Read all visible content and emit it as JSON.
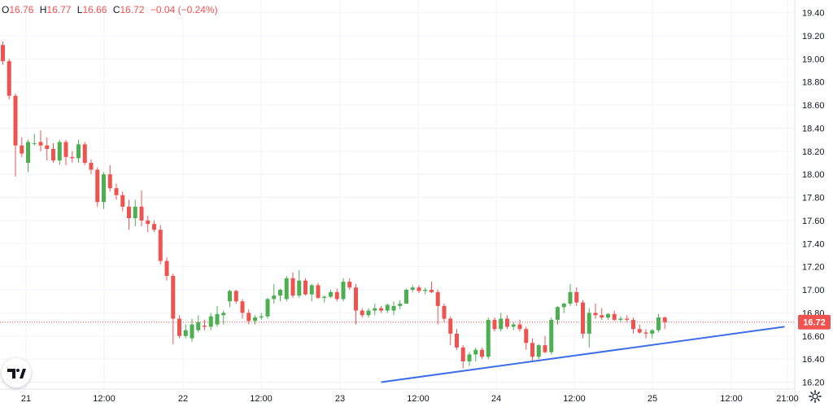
{
  "legend": {
    "o_label": "O",
    "o_value": "16.76",
    "h_label": "H",
    "h_value": "16.77",
    "l_label": "L",
    "l_value": "16.66",
    "c_label": "C",
    "c_value": "16.72",
    "change": "−0.04 (−0.24%)"
  },
  "colors": {
    "up": "#4caf50",
    "down": "#ef5350",
    "trendline": "#3d6ee8",
    "grid": "#f0f3fa",
    "axis_text": "#131722",
    "price_tag": "#ef5350"
  },
  "icons": {
    "logo": "tradingview-logo-icon",
    "settings": "gear-icon"
  },
  "chart_data": {
    "type": "candlestick",
    "y_ticks": [
      "16.20",
      "16.40",
      "16.60",
      "16.80",
      "17.00",
      "17.20",
      "17.40",
      "17.60",
      "17.80",
      "18.00",
      "18.20",
      "18.40",
      "18.60",
      "18.80",
      "19.00",
      "19.20",
      "19.40"
    ],
    "ylim": [
      16.14,
      19.51
    ],
    "x_ticks": [
      "21",
      "12:00",
      "22",
      "12:00",
      "23",
      "12:00",
      "24",
      "12:00",
      "25",
      "12:00",
      "21:00"
    ],
    "last_price": "16.72",
    "grid": true,
    "candles": [
      [
        19.12,
        19.15,
        18.95,
        18.98
      ],
      [
        18.98,
        19.0,
        18.65,
        18.68
      ],
      [
        18.68,
        18.7,
        17.98,
        18.25
      ],
      [
        18.25,
        18.32,
        18.15,
        18.18
      ],
      [
        18.1,
        18.3,
        18.02,
        18.28
      ],
      [
        18.27,
        18.35,
        18.25,
        18.27
      ],
      [
        18.28,
        18.38,
        18.2,
        18.25
      ],
      [
        18.25,
        18.32,
        18.12,
        18.22
      ],
      [
        18.22,
        18.27,
        18.1,
        18.12
      ],
      [
        18.12,
        18.3,
        18.08,
        18.28
      ],
      [
        18.28,
        18.3,
        18.08,
        18.15
      ],
      [
        18.15,
        18.2,
        18.1,
        18.14
      ],
      [
        18.14,
        18.3,
        18.1,
        18.26
      ],
      [
        18.26,
        18.28,
        18.08,
        18.1
      ],
      [
        18.1,
        18.13,
        18.0,
        18.04
      ],
      [
        18.04,
        18.06,
        17.72,
        17.76
      ],
      [
        17.76,
        18.02,
        17.7,
        18.0
      ],
      [
        18.0,
        18.08,
        17.85,
        17.88
      ],
      [
        17.88,
        17.92,
        17.78,
        17.82
      ],
      [
        17.82,
        17.85,
        17.68,
        17.72
      ],
      [
        17.72,
        17.78,
        17.52,
        17.62
      ],
      [
        17.62,
        17.78,
        17.55,
        17.72
      ],
      [
        17.72,
        17.86,
        17.55,
        17.6
      ],
      [
        17.6,
        17.64,
        17.5,
        17.57
      ],
      [
        17.57,
        17.6,
        17.5,
        17.52
      ],
      [
        17.52,
        17.56,
        17.22,
        17.25
      ],
      [
        17.25,
        17.28,
        17.08,
        17.12
      ],
      [
        17.12,
        17.14,
        16.53,
        16.75
      ],
      [
        16.75,
        16.78,
        16.58,
        16.6
      ],
      [
        16.6,
        16.7,
        16.58,
        16.65
      ],
      [
        16.58,
        16.75,
        16.55,
        16.7
      ],
      [
        16.65,
        16.78,
        16.63,
        16.72
      ],
      [
        16.69,
        16.74,
        16.65,
        16.68
      ],
      [
        16.68,
        16.8,
        16.65,
        16.77
      ],
      [
        16.7,
        16.86,
        16.68,
        16.79
      ],
      [
        16.78,
        16.82,
        16.7,
        16.8
      ],
      [
        16.9,
        17.0,
        16.85,
        16.99
      ],
      [
        16.99,
        17.0,
        16.88,
        16.9
      ],
      [
        16.9,
        16.92,
        16.75,
        16.8
      ],
      [
        16.8,
        16.83,
        16.7,
        16.73
      ],
      [
        16.73,
        16.78,
        16.7,
        16.76
      ],
      [
        16.76,
        16.8,
        16.74,
        16.77
      ],
      [
        16.77,
        16.93,
        16.75,
        16.92
      ],
      [
        16.92,
        17.05,
        16.88,
        16.95
      ],
      [
        16.95,
        17.01,
        16.9,
        17.0
      ],
      [
        16.92,
        17.12,
        16.9,
        17.1
      ],
      [
        17.1,
        17.15,
        16.93,
        16.95
      ],
      [
        16.95,
        17.17,
        16.93,
        17.08
      ],
      [
        17.08,
        17.1,
        16.95,
        16.96
      ],
      [
        16.96,
        17.05,
        16.9,
        17.04
      ],
      [
        17.04,
        17.06,
        16.92,
        16.93
      ],
      [
        16.93,
        16.95,
        16.89,
        16.94
      ],
      [
        16.94,
        17.0,
        16.93,
        16.98
      ],
      [
        16.98,
        17.01,
        16.9,
        16.92
      ],
      [
        16.92,
        17.1,
        16.9,
        17.07
      ],
      [
        17.07,
        17.1,
        17.0,
        17.02
      ],
      [
        17.02,
        17.05,
        16.7,
        16.82
      ],
      [
        16.82,
        16.84,
        16.76,
        16.78
      ],
      [
        16.78,
        16.84,
        16.76,
        16.82
      ],
      [
        16.82,
        16.88,
        16.78,
        16.84
      ],
      [
        16.84,
        16.86,
        16.8,
        16.82
      ],
      [
        16.82,
        16.88,
        16.8,
        16.87
      ],
      [
        16.82,
        16.9,
        16.78,
        16.86
      ],
      [
        16.86,
        16.91,
        16.83,
        16.88
      ],
      [
        16.88,
        17.01,
        16.88,
        17.0
      ],
      [
        17.0,
        17.04,
        16.98,
        17.02
      ],
      [
        17.02,
        17.04,
        16.97,
        16.99
      ],
      [
        16.99,
        17.02,
        16.96,
        17.0
      ],
      [
        17.0,
        17.07,
        16.97,
        16.98
      ],
      [
        16.98,
        17.0,
        16.7,
        16.86
      ],
      [
        16.86,
        16.88,
        16.72,
        16.75
      ],
      [
        16.75,
        16.77,
        16.52,
        16.62
      ],
      [
        16.62,
        16.66,
        16.48,
        16.5
      ],
      [
        16.5,
        16.52,
        16.32,
        16.38
      ],
      [
        16.38,
        16.46,
        16.34,
        16.44
      ],
      [
        16.44,
        16.5,
        16.38,
        16.48
      ],
      [
        16.48,
        16.5,
        16.4,
        16.42
      ],
      [
        16.42,
        16.76,
        16.4,
        16.74
      ],
      [
        16.74,
        16.76,
        16.64,
        16.66
      ],
      [
        16.66,
        16.8,
        16.64,
        16.75
      ],
      [
        16.75,
        16.78,
        16.66,
        16.68
      ],
      [
        16.68,
        16.72,
        16.65,
        16.7
      ],
      [
        16.7,
        16.74,
        16.64,
        16.66
      ],
      [
        16.66,
        16.68,
        16.48,
        16.54
      ],
      [
        16.54,
        16.58,
        16.38,
        16.42
      ],
      [
        16.42,
        16.53,
        16.4,
        16.52
      ],
      [
        16.52,
        16.6,
        16.45,
        16.46
      ],
      [
        16.46,
        16.76,
        16.44,
        16.74
      ],
      [
        16.74,
        16.86,
        16.7,
        16.85
      ],
      [
        16.85,
        16.89,
        16.8,
        16.88
      ],
      [
        16.88,
        17.05,
        16.86,
        16.98
      ],
      [
        16.98,
        17.02,
        16.86,
        16.89
      ],
      [
        16.89,
        16.91,
        16.58,
        16.62
      ],
      [
        16.62,
        16.84,
        16.5,
        16.8
      ],
      [
        16.8,
        16.88,
        16.75,
        16.78
      ],
      [
        16.78,
        16.84,
        16.74,
        16.76
      ],
      [
        16.76,
        16.8,
        16.74,
        16.79
      ],
      [
        16.79,
        16.82,
        16.73,
        16.74
      ],
      [
        16.74,
        16.77,
        16.72,
        16.75
      ],
      [
        16.75,
        16.78,
        16.72,
        16.74
      ],
      [
        16.74,
        16.76,
        16.62,
        16.66
      ],
      [
        16.66,
        16.7,
        16.62,
        16.63
      ],
      [
        16.63,
        16.66,
        16.58,
        16.62
      ],
      [
        16.62,
        16.66,
        16.58,
        16.65
      ],
      [
        16.65,
        16.79,
        16.63,
        16.76
      ],
      [
        16.76,
        16.77,
        16.66,
        16.72
      ]
    ],
    "trendline": {
      "from": {
        "candle_index": 60,
        "price": 16.2
      },
      "to": {
        "candle_index": 124,
        "price": 16.68
      }
    }
  }
}
